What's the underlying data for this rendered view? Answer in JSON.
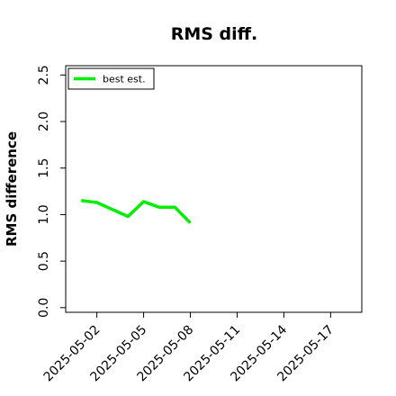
{
  "chart_data": {
    "type": "line",
    "title": "RMS diff.",
    "xlabel": "",
    "ylabel": "RMS difference",
    "x_tick_labels": [
      "2025-05-02",
      "2025-05-05",
      "2025-05-08",
      "2025-05-11",
      "2025-05-14",
      "2025-05-17"
    ],
    "y_tick_labels": [
      "0.0",
      "0.5",
      "1.0",
      "1.5",
      "2.0",
      "2.5"
    ],
    "xlim": [
      "2025-04-30",
      "2025-05-19"
    ],
    "ylim": [
      -0.05,
      2.6
    ],
    "grid": false,
    "legend": "top-left",
    "series": [
      {
        "name": "best est.",
        "color": "#00ee00",
        "x": [
          "2025-05-01",
          "2025-05-02",
          "2025-05-04",
          "2025-05-05",
          "2025-05-06",
          "2025-05-07",
          "2025-05-08"
        ],
        "y": [
          1.15,
          1.13,
          0.98,
          1.14,
          1.08,
          1.08,
          0.91
        ]
      }
    ]
  }
}
